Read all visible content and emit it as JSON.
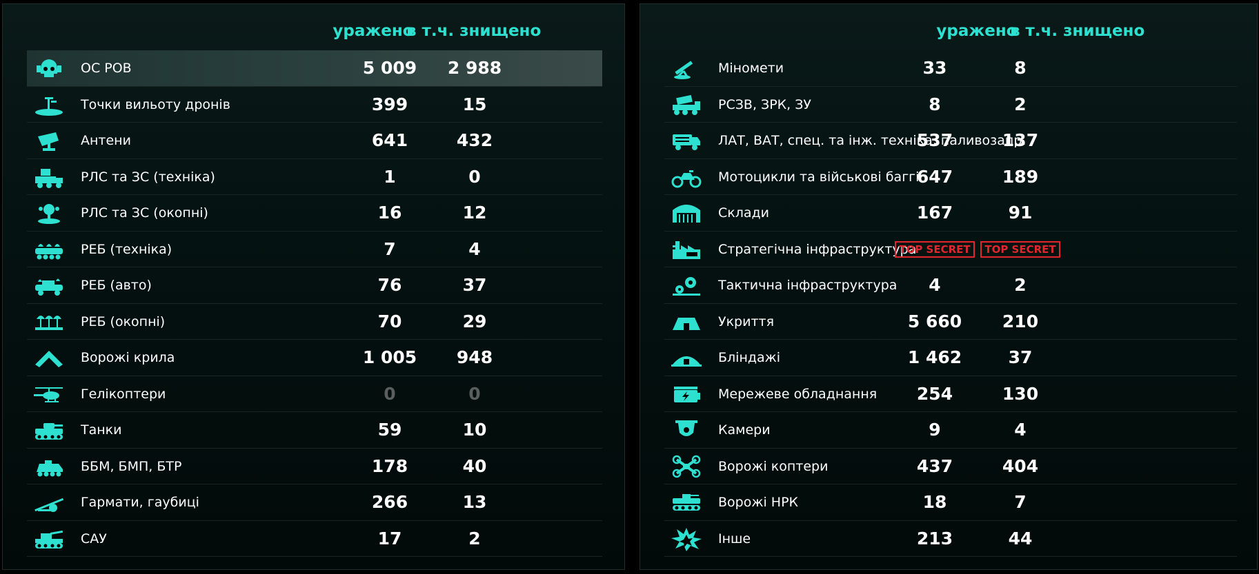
{
  "colors": {
    "accent": "#2ee0cf",
    "secret": "#e2262d",
    "muted": "#5a5f5e"
  },
  "left": {
    "header": {
      "hit": "уражено",
      "destroyed": "в т.ч. знищено"
    },
    "rows": [
      {
        "icon": "skull-helmet-icon",
        "label": "ОС РОВ",
        "hit": "5 009",
        "destroyed": "2 988",
        "highlight": true
      },
      {
        "icon": "drone-launch-point-icon",
        "label": "Точки вильоту дронів",
        "hit": "399",
        "destroyed": "15"
      },
      {
        "icon": "antenna-dish-icon",
        "label": "Антени",
        "hit": "641",
        "destroyed": "432"
      },
      {
        "icon": "radar-truck-icon",
        "label": "РЛС та ЗС (техніка)",
        "hit": "1",
        "destroyed": "0"
      },
      {
        "icon": "radar-trench-icon",
        "label": "РЛС та ЗС (окопні)",
        "hit": "16",
        "destroyed": "12"
      },
      {
        "icon": "ew-vehicle-icon",
        "label": "РЕБ (техніка)",
        "hit": "7",
        "destroyed": "4"
      },
      {
        "icon": "ew-car-icon",
        "label": "РЕБ (авто)",
        "hit": "76",
        "destroyed": "37"
      },
      {
        "icon": "ew-trench-icon",
        "label": "РЕБ (окопні)",
        "hit": "70",
        "destroyed": "29"
      },
      {
        "icon": "wing-icon",
        "label": "Ворожі крила",
        "hit": "1 005",
        "destroyed": "948"
      },
      {
        "icon": "helicopter-icon",
        "label": "Гелікоптери",
        "hit": "0",
        "destroyed": "0",
        "muted": true
      },
      {
        "icon": "tank-icon",
        "label": "Танки",
        "hit": "59",
        "destroyed": "10"
      },
      {
        "icon": "ifv-icon",
        "label": "ББМ, БМП, БТР",
        "hit": "178",
        "destroyed": "40"
      },
      {
        "icon": "howitzer-icon",
        "label": "Гармати, гаубиці",
        "hit": "266",
        "destroyed": "13"
      },
      {
        "icon": "spg-icon",
        "label": "САУ",
        "hit": "17",
        "destroyed": "2"
      }
    ]
  },
  "right": {
    "header": {
      "hit": "уражено",
      "destroyed": "в т.ч. знищено"
    },
    "rows": [
      {
        "icon": "mortar-icon",
        "label": "Міномети",
        "hit": "33",
        "destroyed": "8"
      },
      {
        "icon": "mlrs-icon",
        "label": "РСЗВ, ЗРК, ЗУ",
        "hit": "8",
        "destroyed": "2"
      },
      {
        "icon": "truck-icon",
        "label": "ЛАТ, ВАТ, спец. та інж. техніка, паливозапр.",
        "hit": "537",
        "destroyed": "137"
      },
      {
        "icon": "motorcycle-icon",
        "label": "Мотоцикли та військові баггі",
        "hit": "647",
        "destroyed": "189"
      },
      {
        "icon": "warehouse-icon",
        "label": "Склади",
        "hit": "167",
        "destroyed": "91"
      },
      {
        "icon": "factory-icon",
        "label": "Стратегічна інфраструктура",
        "hit": "TOP SECRET",
        "destroyed": "TOP SECRET",
        "secret": true
      },
      {
        "icon": "gears-icon",
        "label": "Тактична інфраструктура",
        "hit": "4",
        "destroyed": "2"
      },
      {
        "icon": "shelter-icon",
        "label": "Укриття",
        "hit": "5 660",
        "destroyed": "210"
      },
      {
        "icon": "dugout-icon",
        "label": "Бліндажі",
        "hit": "1 462",
        "destroyed": "37"
      },
      {
        "icon": "network-device-icon",
        "label": "Мережеве обладнання",
        "hit": "254",
        "destroyed": "130"
      },
      {
        "icon": "camera-icon",
        "label": "Камери",
        "hit": "9",
        "destroyed": "4"
      },
      {
        "icon": "quadcopter-icon",
        "label": "Ворожі коптери",
        "hit": "437",
        "destroyed": "404"
      },
      {
        "icon": "ugv-icon",
        "label": "Ворожі НРК",
        "hit": "18",
        "destroyed": "7"
      },
      {
        "icon": "explosion-icon",
        "label": "Інше",
        "hit": "213",
        "destroyed": "44"
      }
    ]
  }
}
